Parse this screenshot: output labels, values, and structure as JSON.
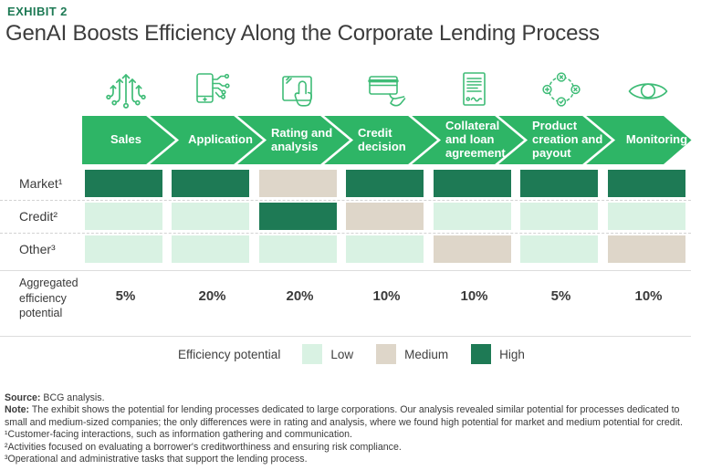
{
  "exhibit_label": "EXHIBIT 2",
  "title": "GenAI Boosts Efficiency Along the Corporate Lending Process",
  "colors": {
    "low": "#d9f2e3",
    "medium": "#ded6c9",
    "high": "#1e7a55",
    "bar": "#2eb566",
    "icon_stroke": "#3fbc77",
    "accent": "#1e7a55"
  },
  "process": {
    "stages": [
      {
        "label": "Sales",
        "icon": "growth-arrows-icon"
      },
      {
        "label": "Application",
        "icon": "phone-circuit-icon"
      },
      {
        "label": "Rating and analysis",
        "icon": "touch-screen-icon"
      },
      {
        "label": "Credit decision",
        "icon": "credit-card-hand-icon"
      },
      {
        "label": "Collateral and loan agreement",
        "icon": "signed-document-icon"
      },
      {
        "label": "Product creation and payout",
        "icon": "process-cycle-icon"
      },
      {
        "label": "Monitoring",
        "icon": "eye-icon"
      }
    ]
  },
  "matrix": {
    "rows": [
      {
        "label": "Market¹",
        "cells": [
          "high",
          "high",
          "medium",
          "high",
          "high",
          "high",
          "high"
        ]
      },
      {
        "label": "Credit²",
        "cells": [
          "low",
          "low",
          "high",
          "medium",
          "low",
          "low",
          "low"
        ]
      },
      {
        "label": "Other³",
        "cells": [
          "low",
          "low",
          "low",
          "low",
          "medium",
          "low",
          "medium"
        ]
      }
    ]
  },
  "aggregated": {
    "label": "Aggregated efficiency potential",
    "values": [
      "5%",
      "20%",
      "20%",
      "10%",
      "10%",
      "5%",
      "10%"
    ]
  },
  "legend": {
    "title": "Efficiency potential",
    "items": [
      {
        "label": "Low",
        "key": "low"
      },
      {
        "label": "Medium",
        "key": "medium"
      },
      {
        "label": "High",
        "key": "high"
      }
    ]
  },
  "footnotes": {
    "source_label": "Source:",
    "source_text": " BCG analysis.",
    "note_label": "Note:",
    "note_text": " The exhibit shows the potential for lending processes dedicated to large corporations. Our analysis revealed similar potential for processes dedicated to small and medium-sized companies; the only differences were in rating and analysis, where we found high potential for market and medium potential for credit.",
    "fn1": "¹Customer-facing interactions, such as information gathering and communication.",
    "fn2": "²Activities focused on evaluating a borrower's creditworthiness and ensuring risk compliance.",
    "fn3": "³Operational and administrative tasks that support the lending process."
  },
  "chart_data": {
    "type": "heatmap",
    "title": "GenAI Boosts Efficiency Along the Corporate Lending Process",
    "categories": [
      "Sales",
      "Application",
      "Rating and analysis",
      "Credit decision",
      "Collateral and loan agreement",
      "Product creation and payout",
      "Monitoring"
    ],
    "series": [
      {
        "name": "Market¹",
        "values": [
          "high",
          "high",
          "medium",
          "high",
          "high",
          "high",
          "high"
        ]
      },
      {
        "name": "Credit²",
        "values": [
          "low",
          "low",
          "high",
          "medium",
          "low",
          "low",
          "low"
        ]
      },
      {
        "name": "Other³",
        "values": [
          "low",
          "low",
          "low",
          "low",
          "medium",
          "low",
          "medium"
        ]
      }
    ],
    "aggregated_efficiency_potential": {
      "label": "Aggregated efficiency potential",
      "values_pct": [
        5,
        20,
        20,
        10,
        10,
        5,
        10
      ]
    },
    "legend": {
      "title": "Efficiency potential",
      "levels": [
        "Low",
        "Medium",
        "High"
      ]
    },
    "legend_position": "bottom-center",
    "grid": false
  }
}
